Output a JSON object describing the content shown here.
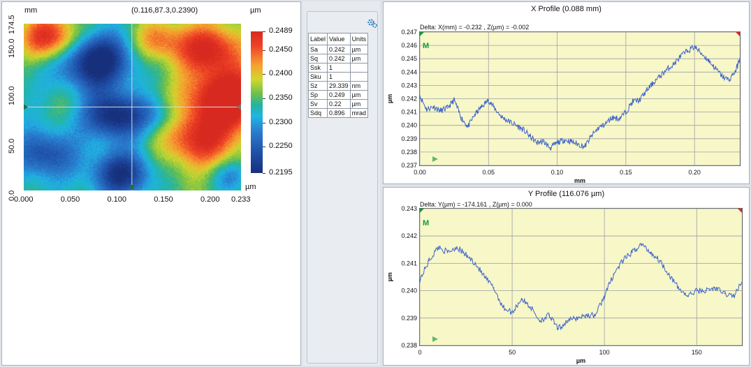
{
  "map": {
    "x_unit_label": "mm",
    "coords_readout": "(0.116,87.3,0.2390)",
    "z_unit_label": "µm",
    "colorbar_unit_bottom": "µm",
    "y_ticks": [
      "174.5",
      "150.0",
      "100.0",
      "50.0",
      "0.0"
    ],
    "y_tick_values": [
      174.5,
      150.0,
      100.0,
      50.0,
      0.0
    ],
    "x_ticks": [
      "0.000",
      "0.050",
      "0.100",
      "0.150",
      "0.200",
      "0.233"
    ],
    "x_tick_values": [
      0.0,
      0.05,
      0.1,
      0.15,
      0.2,
      0.233
    ],
    "x_range": [
      0,
      0.233
    ],
    "y_range": [
      0,
      174.5
    ],
    "cursor": {
      "x": 0.116,
      "y": 87.3
    },
    "colorbar_ticks": [
      "0.2489",
      "0.2450",
      "0.2400",
      "0.2350",
      "0.2300",
      "0.2250",
      "0.2195"
    ],
    "colorbar_values": [
      0.2489,
      0.245,
      0.24,
      0.235,
      0.23,
      0.225,
      0.2195
    ],
    "colorbar_range": [
      0.2195,
      0.2489
    ],
    "colors": {
      "high": "#d7291f",
      "mid": "#6dc04b",
      "low": "#17307c"
    }
  },
  "stats": {
    "icon": "gear-icon",
    "headers": [
      "Label",
      "Value",
      "Units"
    ],
    "rows": [
      {
        "label": "Sa",
        "value": "0.242",
        "unit": "µm"
      },
      {
        "label": "Sq",
        "value": "0.242",
        "unit": "µm"
      },
      {
        "label": "Ssk",
        "value": "1",
        "unit": ""
      },
      {
        "label": "Sku",
        "value": "1",
        "unit": ""
      },
      {
        "label": "Sz",
        "value": "29.339",
        "unit": "nm"
      },
      {
        "label": "Sp",
        "value": "0.249",
        "unit": "µm"
      },
      {
        "label": "Sv",
        "value": "0.22",
        "unit": "µm"
      },
      {
        "label": "Sdq",
        "value": "0.896",
        "unit": "mrad"
      }
    ]
  },
  "chart_data": [
    {
      "type": "line",
      "title": "X Profile (0.088 mm)",
      "delta_text": "Delta:  X(mm) = -0.232 ,  Z(µm) = -0.002",
      "marker_label": "M",
      "xlabel": "mm",
      "ylabel": "µm",
      "xlim": [
        0,
        0.233
      ],
      "ylim": [
        0.237,
        0.247
      ],
      "x_ticks": [
        0.0,
        0.05,
        0.1,
        0.15,
        0.2
      ],
      "x_tick_labels": [
        "0.00",
        "0.05",
        "0.10",
        "0.15",
        "0.20"
      ],
      "y_ticks": [
        0.237,
        0.238,
        0.239,
        0.24,
        0.241,
        0.242,
        0.243,
        0.244,
        0.245,
        0.246,
        0.247
      ],
      "y_tick_labels": [
        "0.237",
        "0.238",
        "0.239",
        "0.240",
        "0.241",
        "0.242",
        "0.243",
        "0.244",
        "0.245",
        "0.246",
        "0.247"
      ],
      "grid": true,
      "color": "#3c63c8",
      "x": [
        0.0,
        0.005,
        0.01,
        0.015,
        0.02,
        0.025,
        0.03,
        0.035,
        0.04,
        0.045,
        0.05,
        0.055,
        0.06,
        0.065,
        0.07,
        0.075,
        0.08,
        0.085,
        0.09,
        0.095,
        0.1,
        0.105,
        0.11,
        0.115,
        0.12,
        0.125,
        0.13,
        0.135,
        0.14,
        0.145,
        0.15,
        0.155,
        0.16,
        0.165,
        0.17,
        0.175,
        0.18,
        0.185,
        0.19,
        0.195,
        0.2,
        0.205,
        0.21,
        0.215,
        0.22,
        0.225,
        0.23,
        0.233
      ],
      "values": [
        0.2422,
        0.2412,
        0.2414,
        0.2411,
        0.2413,
        0.2419,
        0.2406,
        0.2399,
        0.2408,
        0.2414,
        0.2419,
        0.2412,
        0.2406,
        0.2403,
        0.24,
        0.2397,
        0.2392,
        0.2387,
        0.2388,
        0.2383,
        0.2387,
        0.2389,
        0.2388,
        0.2386,
        0.2384,
        0.2392,
        0.2398,
        0.2401,
        0.2406,
        0.2405,
        0.241,
        0.2418,
        0.2419,
        0.2426,
        0.2432,
        0.2437,
        0.2442,
        0.2446,
        0.2452,
        0.2456,
        0.2459,
        0.2454,
        0.2449,
        0.2443,
        0.2437,
        0.2434,
        0.2441,
        0.245
      ]
    },
    {
      "type": "line",
      "title": "Y Profile (116.076 µm)",
      "delta_text": "Delta:  Y(µm) = -174.161 ,  Z(µm) = 0.000",
      "marker_label": "M",
      "xlabel": "µm",
      "ylabel": "µm",
      "xlim": [
        0,
        174.5
      ],
      "ylim": [
        0.238,
        0.243
      ],
      "x_ticks": [
        0,
        50,
        100,
        150
      ],
      "x_tick_labels": [
        "0",
        "50",
        "100",
        "150"
      ],
      "y_ticks": [
        0.238,
        0.239,
        0.24,
        0.241,
        0.242,
        0.243
      ],
      "y_tick_labels": [
        "0.238",
        "0.239",
        "0.240",
        "0.241",
        "0.242",
        "0.243"
      ],
      "grid": true,
      "color": "#3c63c8",
      "x": [
        0,
        5,
        10,
        15,
        20,
        25,
        30,
        35,
        40,
        45,
        50,
        55,
        60,
        65,
        70,
        75,
        80,
        85,
        90,
        95,
        100,
        105,
        110,
        115,
        120,
        125,
        130,
        135,
        140,
        145,
        150,
        155,
        160,
        165,
        170,
        174.5
      ],
      "values": [
        0.2404,
        0.2411,
        0.2416,
        0.2414,
        0.2416,
        0.2413,
        0.241,
        0.2405,
        0.2401,
        0.2394,
        0.2392,
        0.2397,
        0.2394,
        0.2389,
        0.2391,
        0.2386,
        0.2389,
        0.239,
        0.2391,
        0.2391,
        0.2398,
        0.2406,
        0.2411,
        0.2414,
        0.2417,
        0.2414,
        0.2411,
        0.2406,
        0.2401,
        0.2398,
        0.24,
        0.24,
        0.2401,
        0.2399,
        0.2398,
        0.2403
      ]
    }
  ]
}
